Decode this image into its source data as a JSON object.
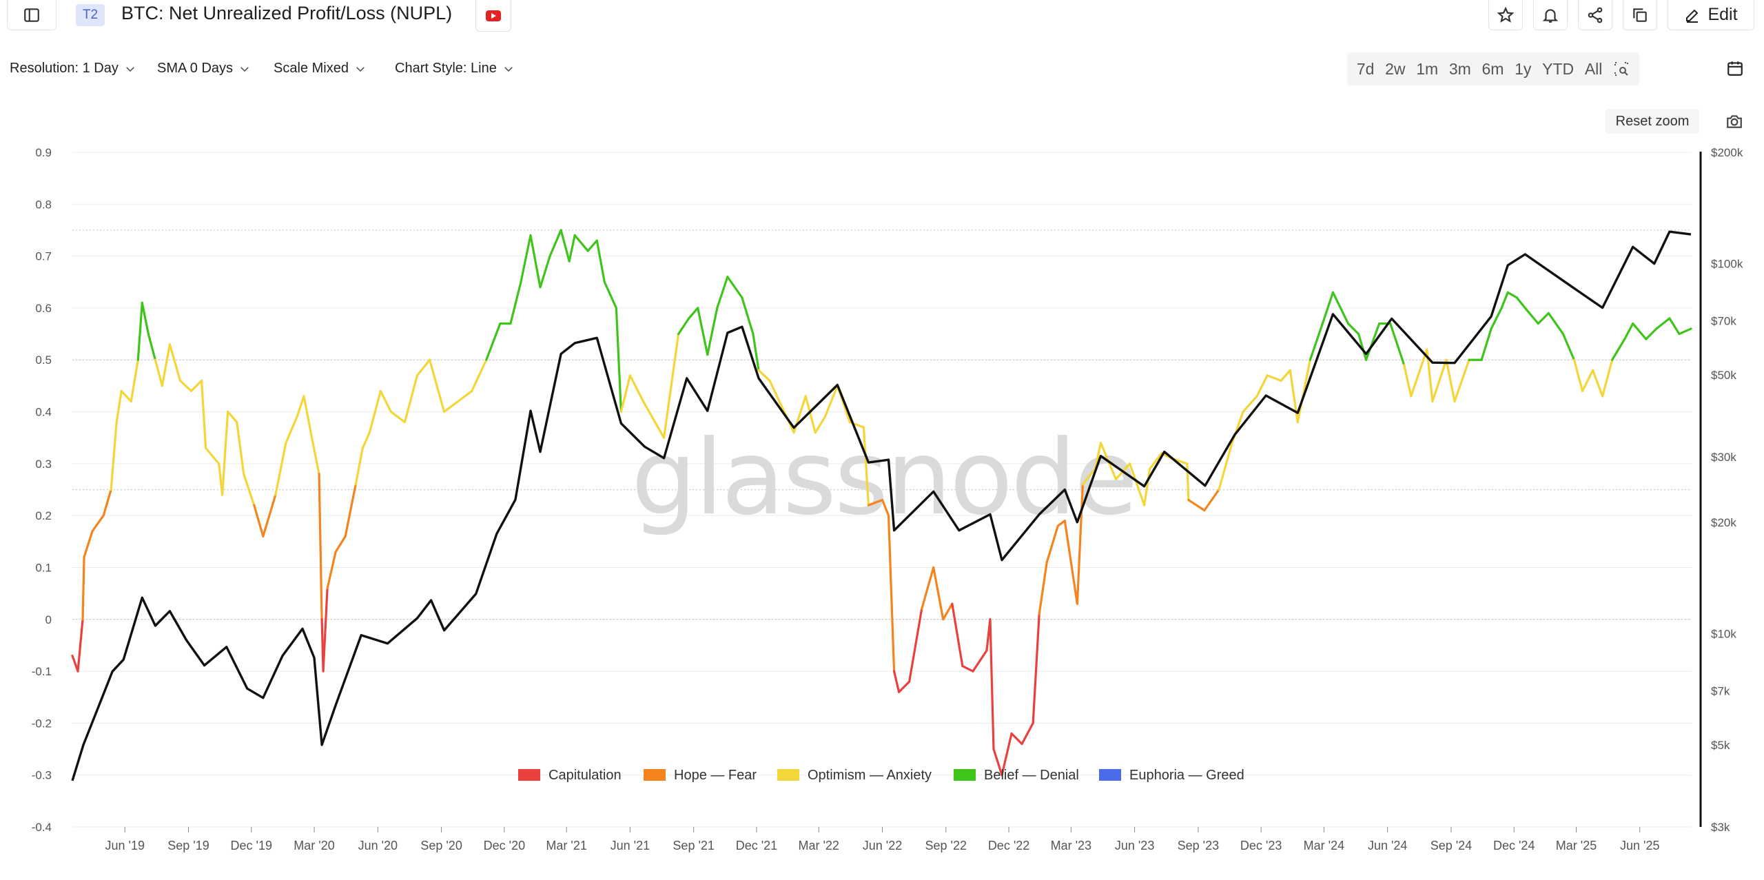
{
  "header": {
    "tier_badge": "T2",
    "title": "BTC: Net Unrealized Profit/Loss (NUPL)",
    "edit_label": "Edit"
  },
  "toolbar": {
    "resolution": "Resolution: 1 Day",
    "sma": "SMA 0 Days",
    "scale": "Scale Mixed",
    "chart_style": "Chart Style: Line",
    "ranges": [
      "7d",
      "2w",
      "1m",
      "3m",
      "6m",
      "1y",
      "YTD",
      "All"
    ],
    "reset_zoom": "Reset zoom"
  },
  "chart_data": {
    "type": "line",
    "xlabel": "",
    "ylabel": "",
    "x_ticks": [
      "Jun '19",
      "Sep '19",
      "Dec '19",
      "Mar '20",
      "Jun '20",
      "Sep '20",
      "Dec '20",
      "Mar '21",
      "Jun '21",
      "Sep '21",
      "Dec '21",
      "Mar '22",
      "Jun '22",
      "Sep '22",
      "Dec '22",
      "Mar '23",
      "Jun '23",
      "Sep '23",
      "Dec '23",
      "Mar '24",
      "Jun '24",
      "Sep '24",
      "Dec '24",
      "Mar '25",
      "Jun '25"
    ],
    "x_range": [
      "2019-03-17",
      "2025-08-15"
    ],
    "left_axis": {
      "ticks": [
        0.9,
        0.8,
        0.7,
        0.6,
        0.5,
        0.4,
        0.3,
        0.2,
        0.1,
        0,
        -0.1,
        -0.2,
        -0.3,
        -0.4
      ],
      "ylim": [
        -0.4,
        0.9
      ]
    },
    "right_axis": {
      "scale": "log",
      "ticks": [
        "$200k",
        "$100k",
        "$70k",
        "$50k",
        "$30k",
        "$20k",
        "$10k",
        "$7k",
        "$5k",
        "$3k"
      ],
      "tick_values": [
        200000,
        100000,
        70000,
        50000,
        30000,
        20000,
        10000,
        7000,
        5000,
        3000
      ],
      "ylim": [
        3000,
        200000
      ]
    },
    "zones": [
      {
        "name": "Capitulation",
        "color": "#e8413e",
        "min": -1.0,
        "max": 0.0
      },
      {
        "name": "Hope — Fear",
        "color": "#f5841f",
        "min": 0.0,
        "max": 0.25
      },
      {
        "name": "Optimism — Anxiety",
        "color": "#f3d63a",
        "min": 0.25,
        "max": 0.5
      },
      {
        "name": "Belief — Denial",
        "color": "#3ec41a",
        "min": 0.5,
        "max": 0.75
      },
      {
        "name": "Euphoria — Greed",
        "color": "#4a6bea",
        "min": 0.75,
        "max": 1.0
      }
    ],
    "series": [
      {
        "axis": "left",
        "color_by_zone": true,
        "points": [
          [
            "2019-03-17",
            -0.07
          ],
          [
            "2019-03-25",
            -0.1
          ],
          [
            "2019-04-01",
            0.0
          ],
          [
            "2019-04-03",
            0.12
          ],
          [
            "2019-04-15",
            0.17
          ],
          [
            "2019-05-01",
            0.2
          ],
          [
            "2019-05-12",
            0.25
          ],
          [
            "2019-05-20",
            0.38
          ],
          [
            "2019-05-27",
            0.44
          ],
          [
            "2019-06-10",
            0.42
          ],
          [
            "2019-06-20",
            0.5
          ],
          [
            "2019-06-26",
            0.61
          ],
          [
            "2019-07-05",
            0.55
          ],
          [
            "2019-07-15",
            0.5
          ],
          [
            "2019-07-25",
            0.45
          ],
          [
            "2019-08-05",
            0.53
          ],
          [
            "2019-08-20",
            0.46
          ],
          [
            "2019-09-05",
            0.44
          ],
          [
            "2019-09-20",
            0.46
          ],
          [
            "2019-09-26",
            0.33
          ],
          [
            "2019-10-15",
            0.3
          ],
          [
            "2019-10-20",
            0.24
          ],
          [
            "2019-10-28",
            0.4
          ],
          [
            "2019-11-10",
            0.38
          ],
          [
            "2019-11-20",
            0.28
          ],
          [
            "2019-12-05",
            0.22
          ],
          [
            "2019-12-18",
            0.16
          ],
          [
            "2020-01-05",
            0.24
          ],
          [
            "2020-01-20",
            0.34
          ],
          [
            "2020-02-05",
            0.39
          ],
          [
            "2020-02-15",
            0.43
          ],
          [
            "2020-02-28",
            0.34
          ],
          [
            "2020-03-08",
            0.28
          ],
          [
            "2020-03-12",
            0.0
          ],
          [
            "2020-03-14",
            -0.1
          ],
          [
            "2020-03-20",
            0.06
          ],
          [
            "2020-04-01",
            0.13
          ],
          [
            "2020-04-15",
            0.16
          ],
          [
            "2020-04-30",
            0.26
          ],
          [
            "2020-05-10",
            0.33
          ],
          [
            "2020-05-20",
            0.36
          ],
          [
            "2020-06-05",
            0.44
          ],
          [
            "2020-06-20",
            0.4
          ],
          [
            "2020-07-10",
            0.38
          ],
          [
            "2020-07-28",
            0.47
          ],
          [
            "2020-08-15",
            0.5
          ],
          [
            "2020-09-05",
            0.4
          ],
          [
            "2020-09-25",
            0.42
          ],
          [
            "2020-10-15",
            0.44
          ],
          [
            "2020-11-05",
            0.5
          ],
          [
            "2020-11-25",
            0.57
          ],
          [
            "2020-12-10",
            0.57
          ],
          [
            "2020-12-25",
            0.65
          ],
          [
            "2021-01-08",
            0.74
          ],
          [
            "2021-01-22",
            0.64
          ],
          [
            "2021-02-05",
            0.7
          ],
          [
            "2021-02-21",
            0.75
          ],
          [
            "2021-03-05",
            0.69
          ],
          [
            "2021-03-13",
            0.74
          ],
          [
            "2021-04-01",
            0.71
          ],
          [
            "2021-04-14",
            0.73
          ],
          [
            "2021-04-25",
            0.65
          ],
          [
            "2021-05-12",
            0.6
          ],
          [
            "2021-05-19",
            0.4
          ],
          [
            "2021-06-01",
            0.47
          ],
          [
            "2021-06-20",
            0.42
          ],
          [
            "2021-07-20",
            0.35
          ],
          [
            "2021-08-10",
            0.55
          ],
          [
            "2021-08-25",
            0.58
          ],
          [
            "2021-09-07",
            0.6
          ],
          [
            "2021-09-21",
            0.51
          ],
          [
            "2021-10-05",
            0.6
          ],
          [
            "2021-10-20",
            0.66
          ],
          [
            "2021-11-10",
            0.62
          ],
          [
            "2021-11-26",
            0.55
          ],
          [
            "2021-12-04",
            0.48
          ],
          [
            "2021-12-20",
            0.46
          ],
          [
            "2022-01-10",
            0.4
          ],
          [
            "2022-01-24",
            0.36
          ],
          [
            "2022-02-10",
            0.43
          ],
          [
            "2022-02-24",
            0.36
          ],
          [
            "2022-03-10",
            0.39
          ],
          [
            "2022-03-28",
            0.45
          ],
          [
            "2022-04-15",
            0.38
          ],
          [
            "2022-05-05",
            0.37
          ],
          [
            "2022-05-12",
            0.22
          ],
          [
            "2022-06-01",
            0.23
          ],
          [
            "2022-06-10",
            0.2
          ],
          [
            "2022-06-18",
            -0.1
          ],
          [
            "2022-06-25",
            -0.14
          ],
          [
            "2022-07-10",
            -0.12
          ],
          [
            "2022-07-28",
            0.02
          ],
          [
            "2022-08-14",
            0.1
          ],
          [
            "2022-08-28",
            0.0
          ],
          [
            "2022-09-10",
            0.03
          ],
          [
            "2022-09-25",
            -0.09
          ],
          [
            "2022-10-10",
            -0.1
          ],
          [
            "2022-10-30",
            -0.06
          ],
          [
            "2022-11-04",
            0.0
          ],
          [
            "2022-11-09",
            -0.25
          ],
          [
            "2022-11-21",
            -0.3
          ],
          [
            "2022-12-05",
            -0.22
          ],
          [
            "2022-12-20",
            -0.24
          ],
          [
            "2023-01-05",
            -0.2
          ],
          [
            "2023-01-14",
            0.01
          ],
          [
            "2023-01-25",
            0.11
          ],
          [
            "2023-02-10",
            0.18
          ],
          [
            "2023-02-20",
            0.19
          ],
          [
            "2023-03-10",
            0.03
          ],
          [
            "2023-03-18",
            0.26
          ],
          [
            "2023-04-05",
            0.29
          ],
          [
            "2023-04-13",
            0.34
          ],
          [
            "2023-05-05",
            0.27
          ],
          [
            "2023-05-25",
            0.3
          ],
          [
            "2023-06-15",
            0.22
          ],
          [
            "2023-06-23",
            0.29
          ],
          [
            "2023-07-10",
            0.32
          ],
          [
            "2023-07-25",
            0.31
          ],
          [
            "2023-08-16",
            0.3
          ],
          [
            "2023-08-18",
            0.23
          ],
          [
            "2023-09-10",
            0.21
          ],
          [
            "2023-10-01",
            0.25
          ],
          [
            "2023-10-20",
            0.34
          ],
          [
            "2023-11-05",
            0.4
          ],
          [
            "2023-11-25",
            0.43
          ],
          [
            "2023-12-10",
            0.47
          ],
          [
            "2023-12-30",
            0.46
          ],
          [
            "2024-01-12",
            0.48
          ],
          [
            "2024-01-23",
            0.38
          ],
          [
            "2024-02-10",
            0.5
          ],
          [
            "2024-02-28",
            0.57
          ],
          [
            "2024-03-14",
            0.63
          ],
          [
            "2024-04-05",
            0.57
          ],
          [
            "2024-04-20",
            0.55
          ],
          [
            "2024-05-01",
            0.5
          ],
          [
            "2024-05-20",
            0.57
          ],
          [
            "2024-06-05",
            0.57
          ],
          [
            "2024-06-25",
            0.49
          ],
          [
            "2024-07-05",
            0.43
          ],
          [
            "2024-07-28",
            0.52
          ],
          [
            "2024-08-05",
            0.42
          ],
          [
            "2024-08-25",
            0.5
          ],
          [
            "2024-09-06",
            0.42
          ],
          [
            "2024-09-27",
            0.5
          ],
          [
            "2024-10-15",
            0.5
          ],
          [
            "2024-10-29",
            0.56
          ],
          [
            "2024-11-13",
            0.6
          ],
          [
            "2024-11-22",
            0.63
          ],
          [
            "2024-12-05",
            0.62
          ],
          [
            "2024-12-17",
            0.6
          ],
          [
            "2025-01-05",
            0.57
          ],
          [
            "2025-01-20",
            0.59
          ],
          [
            "2025-02-10",
            0.55
          ],
          [
            "2025-02-26",
            0.5
          ],
          [
            "2025-03-10",
            0.44
          ],
          [
            "2025-03-25",
            0.48
          ],
          [
            "2025-04-08",
            0.43
          ],
          [
            "2025-04-22",
            0.5
          ],
          [
            "2025-05-10",
            0.54
          ],
          [
            "2025-05-22",
            0.57
          ],
          [
            "2025-06-10",
            0.54
          ],
          [
            "2025-06-25",
            0.56
          ],
          [
            "2025-07-14",
            0.58
          ],
          [
            "2025-07-28",
            0.55
          ],
          [
            "2025-08-14",
            0.56
          ]
        ]
      },
      {
        "axis": "right",
        "color": "#111111",
        "points": [
          [
            "2019-03-17",
            4000
          ],
          [
            "2019-04-02",
            5000
          ],
          [
            "2019-05-14",
            7900
          ],
          [
            "2019-05-30",
            8500
          ],
          [
            "2019-06-26",
            12500
          ],
          [
            "2019-07-15",
            10500
          ],
          [
            "2019-08-05",
            11500
          ],
          [
            "2019-08-29",
            9600
          ],
          [
            "2019-09-24",
            8200
          ],
          [
            "2019-10-26",
            9200
          ],
          [
            "2019-11-25",
            7100
          ],
          [
            "2019-12-18",
            6700
          ],
          [
            "2020-01-15",
            8700
          ],
          [
            "2020-02-13",
            10300
          ],
          [
            "2020-03-01",
            8600
          ],
          [
            "2020-03-12",
            5000
          ],
          [
            "2020-04-01",
            6400
          ],
          [
            "2020-05-08",
            9900
          ],
          [
            "2020-06-15",
            9400
          ],
          [
            "2020-07-28",
            11000
          ],
          [
            "2020-08-17",
            12300
          ],
          [
            "2020-09-05",
            10200
          ],
          [
            "2020-10-21",
            12800
          ],
          [
            "2020-11-20",
            18600
          ],
          [
            "2020-12-17",
            23000
          ],
          [
            "2021-01-08",
            40000
          ],
          [
            "2021-01-22",
            31000
          ],
          [
            "2021-02-21",
            57000
          ],
          [
            "2021-03-13",
            61000
          ],
          [
            "2021-04-14",
            63000
          ],
          [
            "2021-05-19",
            37000
          ],
          [
            "2021-06-22",
            32000
          ],
          [
            "2021-07-20",
            29800
          ],
          [
            "2021-08-22",
            49000
          ],
          [
            "2021-09-21",
            40000
          ],
          [
            "2021-10-20",
            65000
          ],
          [
            "2021-11-10",
            67500
          ],
          [
            "2021-12-04",
            49000
          ],
          [
            "2022-01-24",
            36000
          ],
          [
            "2022-03-28",
            47000
          ],
          [
            "2022-05-12",
            29000
          ],
          [
            "2022-06-10",
            29500
          ],
          [
            "2022-06-18",
            19000
          ],
          [
            "2022-08-14",
            24200
          ],
          [
            "2022-09-20",
            19000
          ],
          [
            "2022-11-04",
            21000
          ],
          [
            "2022-11-21",
            15800
          ],
          [
            "2023-01-14",
            21000
          ],
          [
            "2023-02-20",
            24500
          ],
          [
            "2023-03-10",
            20000
          ],
          [
            "2023-04-13",
            30200
          ],
          [
            "2023-06-15",
            25000
          ],
          [
            "2023-07-14",
            31000
          ],
          [
            "2023-09-11",
            25100
          ],
          [
            "2023-10-24",
            34500
          ],
          [
            "2023-12-08",
            44000
          ],
          [
            "2024-01-23",
            39500
          ],
          [
            "2024-03-14",
            73000
          ],
          [
            "2024-05-01",
            57000
          ],
          [
            "2024-06-07",
            71000
          ],
          [
            "2024-08-05",
            54000
          ],
          [
            "2024-09-06",
            53900
          ],
          [
            "2024-10-29",
            72000
          ],
          [
            "2024-11-22",
            99000
          ],
          [
            "2024-12-17",
            106000
          ],
          [
            "2025-02-25",
            86000
          ],
          [
            "2025-04-08",
            76000
          ],
          [
            "2025-05-22",
            111000
          ],
          [
            "2025-06-22",
            100000
          ],
          [
            "2025-07-14",
            122000
          ],
          [
            "2025-08-14",
            120000
          ]
        ]
      }
    ],
    "legend": [
      "Capitulation",
      "Hope — Fear",
      "Optimism — Anxiety",
      "Belief — Denial",
      "Euphoria — Greed"
    ],
    "legend_position": "bottom-center",
    "grid": true
  }
}
